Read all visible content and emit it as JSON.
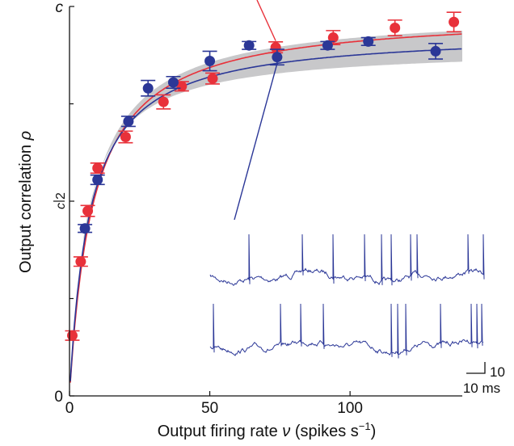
{
  "chart_data": {
    "type": "scatter",
    "title": "",
    "xlabel": "Output firing rate",
    "xlabel_symbol": "ν",
    "xlabel_units_open": " (spikes s",
    "xlabel_units_sup": "−1",
    "xlabel_units_close": ")",
    "ylabel": "Output correlation",
    "ylabel_symbol": "ρ",
    "xlim": [
      0,
      140
    ],
    "ylim": [
      0,
      1
    ],
    "x_ticks": [
      {
        "value": 0,
        "label": "0"
      },
      {
        "value": 50,
        "label": "50"
      },
      {
        "value": 100,
        "label": "100"
      }
    ],
    "y_ticks": [
      {
        "value": 0,
        "label": "0"
      },
      {
        "value": 0.5,
        "label_num": "c",
        "label_den": "2"
      },
      {
        "value": 1,
        "label": "c"
      }
    ],
    "y_minor_ticks": [
      0.25,
      0.75
    ],
    "grid": false,
    "legend": "none",
    "series": [
      {
        "color": "#e8313a",
        "marker": "circle",
        "x": [
          1,
          4,
          6.5,
          10,
          20,
          33.5,
          40,
          51,
          73.5,
          94,
          116,
          137
        ],
        "y": [
          0.155,
          0.345,
          0.475,
          0.585,
          0.665,
          0.755,
          0.795,
          0.815,
          0.895,
          0.92,
          0.945,
          0.96
        ],
        "err": [
          0.012,
          0.012,
          0.014,
          0.013,
          0.015,
          0.018,
          0.012,
          0.014,
          0.014,
          0.018,
          0.02,
          0.025
        ],
        "fit_ymax": 0.985,
        "fit_half": 8.4
      },
      {
        "color": "#2b3797",
        "marker": "circle",
        "x": [
          5.5,
          10,
          21,
          28,
          37,
          50,
          64,
          74,
          92,
          106.5,
          130.5
        ],
        "y": [
          0.43,
          0.555,
          0.705,
          0.79,
          0.805,
          0.86,
          0.9,
          0.87,
          0.9,
          0.91,
          0.885
        ],
        "err": [
          0.01,
          0.012,
          0.013,
          0.02,
          0.015,
          0.025,
          0.01,
          0.02,
          0.01,
          0.01,
          0.02
        ],
        "fit_ymax": 0.937,
        "fit_half": 7.2
      }
    ],
    "band": {
      "color": "#c8c8ca",
      "lo_ymax": 0.895,
      "lo_half": 6.0,
      "hi_ymax": 0.99,
      "hi_half": 7.8,
      "x_start": 5
    },
    "inset": {
      "trace_color": "#2b3797",
      "scale_bar_v_label": "10",
      "scale_bar_h_label": "10 ms"
    }
  }
}
